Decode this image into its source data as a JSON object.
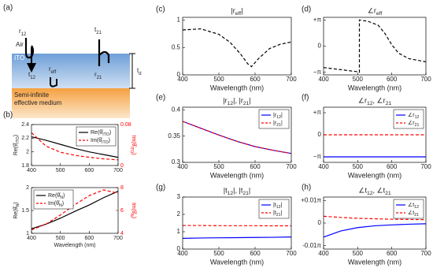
{
  "diagram": {
    "label": "(a)",
    "air": "Air",
    "ito": "ITO",
    "r12": "r12",
    "t21": "t21",
    "t12": "t12",
    "reff": "reff",
    "r21": "r21",
    "td": "td",
    "medium_1": "Semi-infinite",
    "medium_2": "effective medium"
  },
  "panel_labels": [
    "(b)",
    "(c)",
    "(d)",
    "(e)",
    "(f)",
    "(g)",
    "(h)"
  ],
  "chart_data": [
    {
      "type": "line",
      "x": [
        400,
        450,
        500,
        550,
        600,
        650,
        700
      ],
      "series": [
        {
          "name": "Re(θ̂ITO)",
          "color": "#000000",
          "style": "solid",
          "values": [
            2.22,
            2.17,
            2.11,
            2.05,
            2.0,
            1.96,
            1.92
          ]
        },
        {
          "name": "Im(θ̂ITO)",
          "color": "#ff0000",
          "style": "dashed",
          "axis": "y2",
          "values": [
            0.064,
            0.038,
            0.026,
            0.02,
            0.016,
            0.013,
            0.011
          ]
        }
      ],
      "xlim": [
        400,
        700
      ],
      "xticks": [
        400,
        500,
        600,
        700
      ],
      "ylim": [
        1.8,
        2.4
      ],
      "yticks": [
        1.8,
        2,
        2.2,
        2.4
      ],
      "ylabel": "Re(θ̂ITO)",
      "y2lim": [
        0,
        0.08
      ],
      "y2ticks": [
        0,
        0.08
      ],
      "y2label": "Im(θ̂ITO)",
      "legend": "upper right"
    },
    {
      "type": "line",
      "x": [
        400,
        450,
        500,
        550,
        600,
        650,
        700
      ],
      "series": [
        {
          "name": "Re(θ̂N)",
          "color": "#000000",
          "style": "solid",
          "values": [
            1.1,
            1.2,
            1.33,
            1.48,
            1.62,
            1.78,
            1.92
          ]
        },
        {
          "name": "Im(θ̂N)",
          "color": "#ff0000",
          "style": "dashed",
          "axis": "y2",
          "values": [
            4.3,
            4.8,
            5.6,
            6.5,
            7.3,
            7.8,
            7.5
          ]
        }
      ],
      "xlim": [
        400,
        700
      ],
      "xticks": [
        400,
        500,
        600,
        700
      ],
      "xlabel": "Wavelength (nm)",
      "ylim": [
        1,
        2
      ],
      "yticks": [
        1,
        1.5,
        2
      ],
      "ylabel": "Re(θ̂N)",
      "y2lim": [
        4,
        8
      ],
      "y2ticks": [
        4,
        6,
        8
      ],
      "y2label": "Im(θ̂N)",
      "legend": "upper left"
    },
    {
      "type": "line",
      "title": "|reff|",
      "x": [
        400,
        450,
        500,
        530,
        560,
        580,
        590,
        610,
        640,
        670,
        700
      ],
      "series": [
        {
          "color": "#000000",
          "style": "dashed",
          "values": [
            0.82,
            0.84,
            0.74,
            0.6,
            0.38,
            0.2,
            0.15,
            0.3,
            0.48,
            0.56,
            0.6
          ]
        }
      ],
      "xlim": [
        400,
        700
      ],
      "xticks": [
        400,
        500,
        600,
        700
      ],
      "xlabel": "Wavelength (nm)",
      "ylim": [
        0,
        1.05
      ],
      "yticks": [
        0,
        0.5,
        1
      ]
    },
    {
      "type": "line",
      "title": "∠reff",
      "x": [
        400,
        450,
        500,
        505,
        505,
        530,
        560,
        580,
        600,
        620,
        650,
        700
      ],
      "series": [
        {
          "color": "#000000",
          "style": "dashed",
          "values": [
            -0.82,
            -0.9,
            -0.98,
            -1,
            1,
            0.95,
            0.8,
            0.48,
            0.05,
            -0.27,
            -0.48,
            -0.6
          ]
        }
      ],
      "xlim": [
        400,
        700
      ],
      "xticks": [
        400,
        500,
        600,
        700
      ],
      "xlabel": "Wavelength (nm)",
      "ylim": [
        -1.1,
        1.1
      ],
      "yticks": [
        {
          "value": -1,
          "label": "−π"
        },
        0,
        {
          "value": 1,
          "label": "+π"
        }
      ]
    },
    {
      "type": "line",
      "title": "|r12|, |r21|",
      "x": [
        400,
        450,
        500,
        550,
        600,
        650,
        700
      ],
      "series": [
        {
          "name": "|r12|",
          "color": "#0000ff",
          "style": "solid",
          "values": [
            0.378,
            0.365,
            0.352,
            0.34,
            0.33,
            0.323,
            0.317
          ]
        },
        {
          "name": "|r21|",
          "color": "#ff0000",
          "style": "dashed",
          "values": [
            0.378,
            0.365,
            0.352,
            0.34,
            0.33,
            0.323,
            0.317
          ]
        }
      ],
      "xlim": [
        400,
        700
      ],
      "xticks": [
        400,
        500,
        600,
        700
      ],
      "xlabel": "Wavelength (nm)",
      "ylim": [
        0.3,
        0.405
      ],
      "yticks": [
        0.3,
        0.35,
        0.4
      ],
      "legend": "upper right"
    },
    {
      "type": "line",
      "title": "∠r12, ∠r21",
      "x": [
        400,
        700
      ],
      "series": [
        {
          "name": "∠r12",
          "color": "#0000ff",
          "style": "solid",
          "values": [
            -1,
            -1
          ]
        },
        {
          "name": "∠r21",
          "color": "#ff0000",
          "style": "dashed",
          "values": [
            0,
            0
          ]
        }
      ],
      "xlim": [
        400,
        700
      ],
      "xticks": [
        400,
        500,
        600,
        700
      ],
      "xlabel": "Wavelength (nm)",
      "ylim": [
        -1.25,
        1.25
      ],
      "yticks": [
        {
          "value": -1,
          "label": "−π"
        },
        0,
        {
          "value": 1,
          "label": "+π"
        }
      ],
      "legend": "upper right"
    },
    {
      "type": "line",
      "title": "|t12|, |t21|",
      "x": [
        400,
        450,
        500,
        550,
        600,
        650,
        700
      ],
      "series": [
        {
          "name": "|t12|",
          "color": "#0000ff",
          "style": "solid",
          "values": [
            0.62,
            0.64,
            0.65,
            0.66,
            0.67,
            0.68,
            0.7
          ]
        },
        {
          "name": "|t21|",
          "color": "#ff0000",
          "style": "dashed",
          "values": [
            1.36,
            1.36,
            1.35,
            1.35,
            1.35,
            1.34,
            1.34
          ]
        }
      ],
      "xlim": [
        400,
        700
      ],
      "xticks": [
        400,
        500,
        600,
        700
      ],
      "xlabel": "Wavelength (nm)",
      "ylim": [
        0,
        3
      ],
      "yticks": [
        0,
        1,
        2,
        3
      ],
      "legend": "upper right"
    },
    {
      "type": "line",
      "title": "∠t12, ∠t21",
      "x": [
        400,
        450,
        500,
        550,
        600,
        650,
        700
      ],
      "series": [
        {
          "name": "∠t12",
          "color": "#0000ff",
          "style": "solid",
          "values": [
            -0.0062,
            -0.0035,
            -0.002,
            -0.0012,
            -0.0008,
            -0.0005,
            -0.0003
          ]
        },
        {
          "name": "∠t21",
          "color": "#ff0000",
          "style": "dashed",
          "values": [
            0.003,
            0.0025,
            0.0021,
            0.0019,
            0.0017,
            0.0016,
            0.0015
          ]
        }
      ],
      "xlim": [
        400,
        700
      ],
      "xticks": [
        400,
        500,
        600,
        700
      ],
      "xlabel": "Wavelength (nm)",
      "ylim": [
        -0.0115,
        0.0115
      ],
      "yticks": [
        {
          "value": -0.01,
          "label": "-0.01π"
        },
        0,
        {
          "value": 0.01,
          "label": "+0.01π"
        }
      ],
      "legend": "upper right"
    }
  ]
}
